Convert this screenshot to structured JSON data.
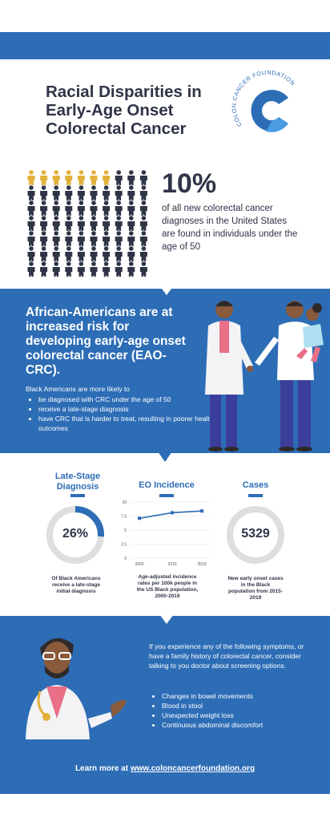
{
  "header": {
    "title_lines": [
      "Racial Disparities in",
      "Early-Age Onset",
      "Colorectal Cancer"
    ],
    "logo_text": "COLON CANCER FOUNDATION"
  },
  "stat": {
    "percent": "10%",
    "description": "of all new colorectal cancer diagnoses in the United States are found in individuals under the age of 50",
    "highlighted_fraction": 0.1
  },
  "risk": {
    "heading": "African-Americans are at increased risk for developing early-age onset colorectal cancer (EAO-CRC).",
    "intro": "Black Americans are more likely to",
    "items": [
      "be diagnosed with CRC under the age of 50",
      "receive a late-stage diagnosis",
      "have CRC that is harder to treat, resulting in poorer health outcomes"
    ]
  },
  "late_stage": {
    "heading": "Late-Stage Diagnosis",
    "value": "26%",
    "fraction": 0.26,
    "caption": "Of Black Americans receive a late-stage initial diagnosis"
  },
  "incidence": {
    "heading": "EO Incidence",
    "caption": "Age-adjusted incidence rates per 100k people in the US Black population, 2000-2019"
  },
  "cases": {
    "heading": "Cases",
    "value": "5329",
    "caption": "New early onset cases in the Black population from 2015-2019"
  },
  "chart_data": {
    "type": "line",
    "x": [
      "2000",
      "2010",
      "2019"
    ],
    "series": [
      {
        "values": [
          7.1,
          8.1,
          8.4
        ]
      }
    ],
    "y_ticks": [
      "0",
      "2.5",
      "5",
      "7.5",
      "10"
    ],
    "ylim": [
      0,
      10
    ],
    "grid": true,
    "color": "#2d6db6"
  },
  "symptoms": {
    "intro": "If you experience any of the following symptoms, or have a family history of colorectal cancer, consider talking to you doctor about screening options.",
    "items": [
      "Changes in bowel movements",
      "Blood in stool",
      "Unexpected weight loss",
      "Continuous abdominal discomfort"
    ]
  },
  "footer": {
    "prefix": "Learn more at ",
    "link": "www.coloncancerfoundation.org"
  },
  "colors": {
    "blue": "#2d6db6",
    "navy": "#2f3447",
    "gold": "#e2b13c",
    "ring_gray": "#dedede"
  }
}
